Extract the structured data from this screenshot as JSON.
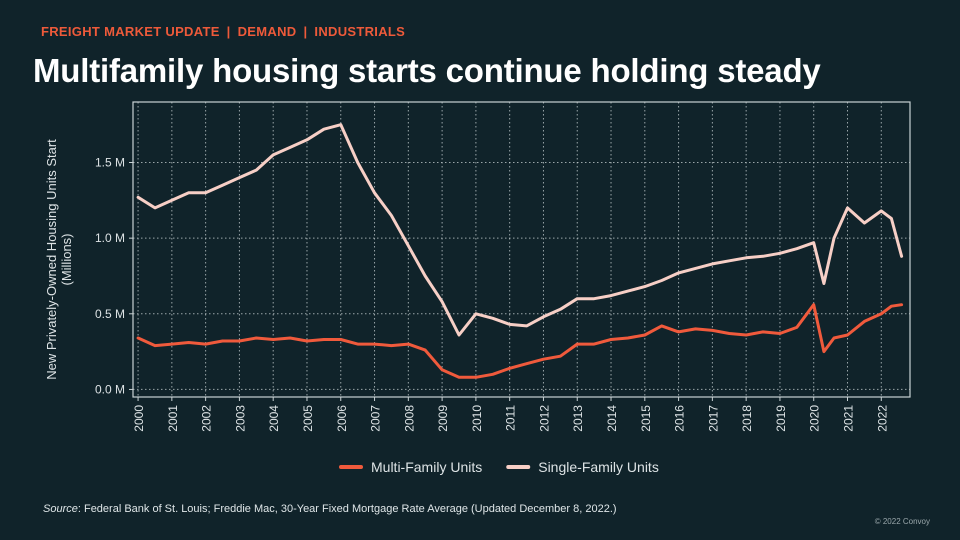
{
  "header": {
    "kicker": [
      "FREIGHT MARKET UPDATE",
      "DEMAND",
      "INDUSTRIALS"
    ],
    "kicker_separator": "|",
    "title": "Multifamily housing starts continue holding steady"
  },
  "footer": {
    "source_label": "Source",
    "source_text": ": Federal Bank of St. Louis; Freddie Mac, 30-Year Fixed Mortgage Rate Average (Updated December 8, 2022.)",
    "copyright": "© 2022 Convoy"
  },
  "colors": {
    "background": "#10232a",
    "kicker": "#ee5a3a",
    "multi_family": "#f05a3c",
    "single_family": "#f7cfc6",
    "grid": "#c9d2d4",
    "axis_text": "#dde3e5"
  },
  "chart_data": {
    "type": "line",
    "ylabel": "New Privately-Owned Housing Units Start\n(Millions)",
    "xlabel": "",
    "xlim": [
      1999.85,
      2022.85
    ],
    "ylim": [
      -0.05,
      1.9
    ],
    "yticks": [
      0.0,
      0.5,
      1.0,
      1.5
    ],
    "ytick_labels": [
      "0.0 M",
      "0.5 M",
      "1.0 M",
      "1.5 M"
    ],
    "xticks": [
      "2000",
      "2001",
      "2002",
      "2003",
      "2004",
      "2005",
      "2006",
      "2007",
      "2008",
      "2009",
      "2010",
      "2011",
      "2012",
      "2013",
      "2014",
      "2015",
      "2016",
      "2017",
      "2018",
      "2019",
      "2020",
      "2021",
      "2022"
    ],
    "grid": true,
    "legend_position": "bottom",
    "series": [
      {
        "name": "Multi-Family Units",
        "color": "#f05a3c",
        "x": [
          2000.0,
          2000.5,
          2001.0,
          2001.5,
          2002.0,
          2002.5,
          2003.0,
          2003.5,
          2004.0,
          2004.5,
          2005.0,
          2005.5,
          2006.0,
          2006.5,
          2007.0,
          2007.5,
          2008.0,
          2008.5,
          2009.0,
          2009.5,
          2010.0,
          2010.5,
          2011.0,
          2011.5,
          2012.0,
          2012.5,
          2013.0,
          2013.5,
          2014.0,
          2014.5,
          2015.0,
          2015.5,
          2016.0,
          2016.5,
          2017.0,
          2017.5,
          2018.0,
          2018.5,
          2019.0,
          2019.5,
          2020.0,
          2020.3,
          2020.6,
          2021.0,
          2021.5,
          2022.0,
          2022.3,
          2022.6
        ],
        "y": [
          0.34,
          0.29,
          0.3,
          0.31,
          0.3,
          0.32,
          0.32,
          0.34,
          0.33,
          0.34,
          0.32,
          0.33,
          0.33,
          0.3,
          0.3,
          0.29,
          0.3,
          0.26,
          0.13,
          0.08,
          0.08,
          0.1,
          0.14,
          0.17,
          0.2,
          0.22,
          0.3,
          0.3,
          0.33,
          0.34,
          0.36,
          0.42,
          0.38,
          0.4,
          0.39,
          0.37,
          0.36,
          0.38,
          0.37,
          0.41,
          0.56,
          0.25,
          0.34,
          0.36,
          0.45,
          0.5,
          0.55,
          0.56
        ]
      },
      {
        "name": "Single-Family Units",
        "color": "#f7cfc6",
        "x": [
          2000.0,
          2000.5,
          2001.0,
          2001.5,
          2002.0,
          2002.5,
          2003.0,
          2003.5,
          2004.0,
          2004.5,
          2005.0,
          2005.5,
          2006.0,
          2006.5,
          2007.0,
          2007.5,
          2008.0,
          2008.5,
          2009.0,
          2009.5,
          2010.0,
          2010.5,
          2011.0,
          2011.5,
          2012.0,
          2012.5,
          2013.0,
          2013.5,
          2014.0,
          2014.5,
          2015.0,
          2015.5,
          2016.0,
          2016.5,
          2017.0,
          2017.5,
          2018.0,
          2018.5,
          2019.0,
          2019.5,
          2020.0,
          2020.3,
          2020.6,
          2021.0,
          2021.5,
          2022.0,
          2022.3,
          2022.6
        ],
        "y": [
          1.27,
          1.2,
          1.25,
          1.3,
          1.3,
          1.35,
          1.4,
          1.45,
          1.55,
          1.6,
          1.65,
          1.72,
          1.75,
          1.5,
          1.3,
          1.15,
          0.95,
          0.75,
          0.58,
          0.36,
          0.5,
          0.47,
          0.43,
          0.42,
          0.48,
          0.53,
          0.6,
          0.6,
          0.62,
          0.65,
          0.68,
          0.72,
          0.77,
          0.8,
          0.83,
          0.85,
          0.87,
          0.88,
          0.9,
          0.93,
          0.97,
          0.7,
          1.0,
          1.2,
          1.1,
          1.18,
          1.13,
          0.88
        ]
      }
    ]
  }
}
